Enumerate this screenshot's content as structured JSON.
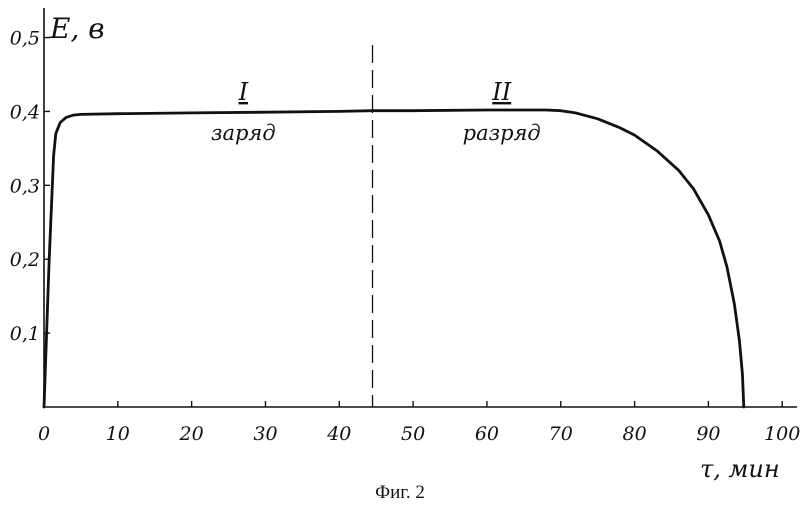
{
  "chart_data": {
    "type": "line",
    "ylabel": "E, в",
    "xlabel": "τ, мин",
    "caption": "Фиг. 2",
    "xlim": [
      0,
      102
    ],
    "ylim": [
      0,
      0.54
    ],
    "x_ticks": [
      "0",
      "10",
      "20",
      "30",
      "40",
      "50",
      "60",
      "70",
      "80",
      "90",
      "100"
    ],
    "x_tick_values": [
      0,
      10,
      20,
      30,
      40,
      50,
      60,
      70,
      80,
      90,
      100
    ],
    "y_ticks": [
      "0,1",
      "0,2",
      "0,3",
      "0,4",
      "0,5"
    ],
    "y_tick_values": [
      0.1,
      0.2,
      0.3,
      0.4,
      0.5
    ],
    "divider_x": 44.5,
    "regions": [
      {
        "numeral": "I",
        "label": "заряд",
        "x": 27
      },
      {
        "numeral": "II",
        "label": "разряд",
        "x": 62
      }
    ],
    "series": [
      {
        "x": [
          0,
          0.7,
          1.3,
          1.6,
          2.2,
          3,
          4,
          5,
          10,
          20,
          30,
          40,
          44.5,
          50,
          60,
          65,
          68,
          70,
          72,
          75,
          78,
          80,
          83,
          86,
          88,
          90,
          91.5,
          92.5,
          93.5,
          94.2,
          94.6,
          94.8
        ],
        "y": [
          0,
          0.2,
          0.34,
          0.37,
          0.385,
          0.392,
          0.395,
          0.396,
          0.397,
          0.398,
          0.399,
          0.4,
          0.401,
          0.401,
          0.402,
          0.402,
          0.402,
          0.401,
          0.398,
          0.39,
          0.378,
          0.368,
          0.347,
          0.32,
          0.295,
          0.26,
          0.225,
          0.19,
          0.14,
          0.09,
          0.045,
          0
        ]
      }
    ]
  }
}
